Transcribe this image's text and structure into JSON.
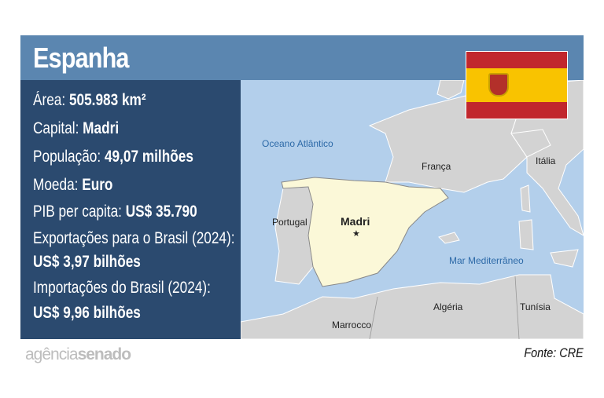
{
  "header": {
    "title": "Espanha"
  },
  "facts": [
    {
      "label": "Área: ",
      "value": "505.983 km²"
    },
    {
      "label": "Capital: ",
      "value": "Madri"
    },
    {
      "label": "População: ",
      "value": "49,07 milhões"
    },
    {
      "label": "Moeda: ",
      "value": "Euro"
    },
    {
      "label": "PIB per capita: ",
      "value": "US$ 35.790"
    },
    {
      "label": "Exportações para o Brasil (2024):",
      "value": ""
    },
    {
      "label": "",
      "value": "US$ 3,97 bilhões"
    },
    {
      "label": "Importações do Brasil (2024):",
      "value": ""
    },
    {
      "label": "",
      "value": "US$ 9,96 bilhões"
    }
  ],
  "map": {
    "labels": {
      "ocean": "Oceano Atlântico",
      "france": "França",
      "italy": "Itália",
      "portugal": "Portugal",
      "capital": "Madri",
      "capital_marker": "★",
      "med": "Mar Mediterrâneo",
      "algeria": "Algéria",
      "morocco": "Marrocco",
      "tunisia": "Tunísia"
    },
    "colors": {
      "sea": "#b3cfeb",
      "land": "#d3d3d3",
      "highlight": "#fbf8d8"
    }
  },
  "flag": {
    "colors": {
      "red": "#c1272d",
      "yellow": "#f9c300"
    }
  },
  "source": "Fonte: CRE",
  "logo": {
    "part1": "agência",
    "part2": "senado"
  }
}
